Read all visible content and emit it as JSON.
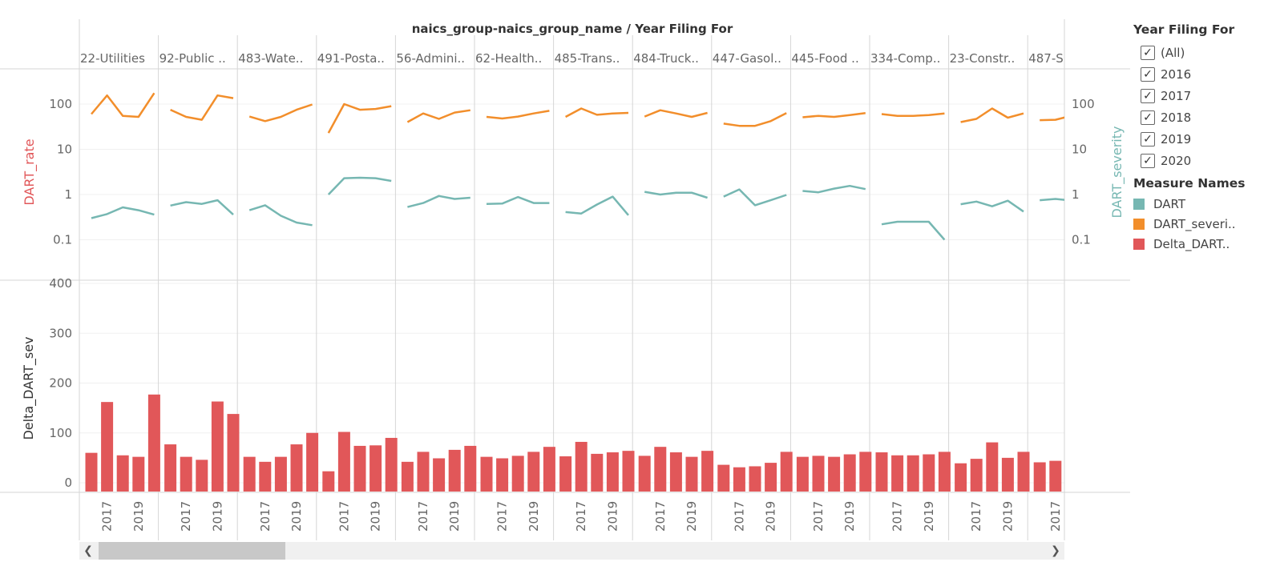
{
  "header": {
    "title": "naics_group-naics_group_name / Year Filing For"
  },
  "legend": {
    "filter_title": "Year Filing For",
    "filter_items": [
      {
        "label": "(All)",
        "checked": true
      },
      {
        "label": "2016",
        "checked": true
      },
      {
        "label": "2017",
        "checked": true
      },
      {
        "label": "2018",
        "checked": true
      },
      {
        "label": "2019",
        "checked": true
      },
      {
        "label": "2020",
        "checked": true
      }
    ],
    "measures_title": "Measure Names",
    "measures": [
      {
        "label": "DART",
        "color": "#76b7b2"
      },
      {
        "label": "DART_severi..",
        "color": "#f28e2b"
      },
      {
        "label": "Delta_DART..",
        "color": "#e15759"
      }
    ]
  },
  "scrollbar": {
    "left_icon": "chevron-left-icon",
    "right_icon": "chevron-right-icon"
  },
  "chart_data": {
    "type": "line",
    "colors": {
      "dart": "#76b7b2",
      "dart_severity": "#f28e2b",
      "delta": "#e15759"
    },
    "years": [
      2016,
      2017,
      2018,
      2019,
      2020
    ],
    "x_tick_labels": [
      "2017",
      "2019"
    ],
    "top_panel": {
      "left_axis_title": "DART_rate",
      "right_axis_title": "DART_severity",
      "scale": "log",
      "ylim": [
        0.05,
        500
      ],
      "left_ticks": [
        "100",
        "10",
        "1",
        "0.1"
      ],
      "right_ticks": [
        "100",
        "10",
        "1",
        "0.1"
      ],
      "tick_values": [
        100,
        10,
        1,
        0.1
      ]
    },
    "bottom_panel": {
      "axis_title": "Delta_DART_sev",
      "ylim": [
        0,
        400
      ],
      "ticks": [
        "400",
        "300",
        "200",
        "100",
        "0"
      ],
      "tick_values": [
        400,
        300,
        200,
        100,
        0
      ]
    },
    "groups": [
      {
        "name": "22-Utilities",
        "dart": [
          0.3,
          0.37,
          0.52,
          0.45,
          0.36
        ],
        "dart_severity": [
          60,
          155,
          55,
          52,
          175
        ],
        "delta": [
          60,
          162,
          55,
          52,
          177
        ]
      },
      {
        "name": "92-Public ..",
        "dart": [
          0.57,
          0.68,
          0.62,
          0.75,
          0.36
        ],
        "dart_severity": [
          75,
          52,
          45,
          155,
          135
        ],
        "delta": [
          77,
          52,
          46,
          163,
          138
        ]
      },
      {
        "name": "483-Wate..",
        "dart": [
          0.45,
          0.58,
          0.34,
          0.24,
          0.21
        ],
        "dart_severity": [
          53,
          42,
          52,
          75,
          98
        ],
        "delta": [
          52,
          42,
          52,
          77,
          100
        ]
      },
      {
        "name": "491-Posta..",
        "dart": [
          1.0,
          2.3,
          2.35,
          2.3,
          2.0
        ],
        "dart_severity": [
          23,
          100,
          75,
          78,
          90
        ],
        "delta": [
          23,
          102,
          74,
          75,
          90
        ]
      },
      {
        "name": "56-Admini..",
        "dart": [
          0.53,
          0.65,
          0.93,
          0.8,
          0.85
        ],
        "dart_severity": [
          40,
          62,
          47,
          65,
          73
        ],
        "delta": [
          42,
          62,
          49,
          66,
          74
        ]
      },
      {
        "name": "62-Health..",
        "dart": [
          0.62,
          0.63,
          0.88,
          0.65,
          0.65
        ],
        "dart_severity": [
          52,
          48,
          53,
          62,
          71
        ],
        "delta": [
          52,
          49,
          54,
          62,
          72
        ]
      },
      {
        "name": "485-Trans..",
        "dart": [
          0.41,
          0.38,
          0.6,
          0.9,
          0.35
        ],
        "dart_severity": [
          52,
          80,
          58,
          62,
          64
        ],
        "delta": [
          53,
          82,
          58,
          61,
          64
        ]
      },
      {
        "name": "484-Truck..",
        "dart": [
          1.15,
          1.0,
          1.1,
          1.1,
          0.85
        ],
        "dart_severity": [
          53,
          73,
          62,
          52,
          64
        ],
        "delta": [
          54,
          72,
          61,
          52,
          64
        ]
      },
      {
        "name": "447-Gasol..",
        "dart": [
          0.9,
          1.3,
          0.58,
          0.75,
          0.98
        ],
        "dart_severity": [
          37,
          33,
          33,
          42,
          63
        ],
        "delta": [
          36,
          31,
          33,
          40,
          62
        ]
      },
      {
        "name": "445-Food ..",
        "dart": [
          1.2,
          1.12,
          1.35,
          1.55,
          1.32
        ],
        "dart_severity": [
          51,
          55,
          52,
          57,
          63
        ],
        "delta": [
          52,
          54,
          52,
          57,
          62
        ]
      },
      {
        "name": "334-Comp..",
        "dart": [
          0.22,
          0.25,
          0.25,
          0.25,
          0.1
        ],
        "dart_severity": [
          60,
          55,
          55,
          57,
          62
        ],
        "delta": [
          61,
          55,
          55,
          57,
          62
        ]
      },
      {
        "name": "23-Constr..",
        "dart": [
          0.61,
          0.7,
          0.55,
          0.73,
          0.42
        ],
        "dart_severity": [
          40,
          47,
          80,
          50,
          62
        ],
        "delta": [
          39,
          48,
          81,
          50,
          62
        ]
      },
      {
        "name": "487-S..",
        "dart": [
          0.75,
          0.8,
          0.74
        ],
        "dart_severity": [
          44,
          45,
          55
        ],
        "delta": [
          41,
          44,
          57
        ]
      }
    ]
  }
}
